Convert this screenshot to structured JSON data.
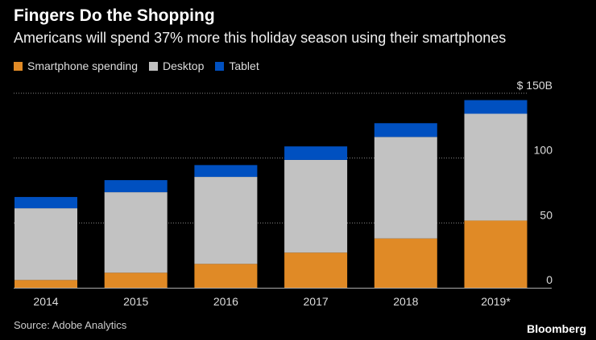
{
  "title": "Fingers Do the Shopping",
  "subtitle": "Americans will spend 37% more this holiday season using their smartphones",
  "source": "Source: Adobe Analytics",
  "brand": "Bloomberg",
  "chart_data": {
    "type": "bar",
    "stacked": true,
    "categories": [
      "2014",
      "2015",
      "2016",
      "2017",
      "2018",
      "2019*"
    ],
    "series": [
      {
        "name": "Smartphone spending",
        "color": "#e08a26",
        "values": [
          6.0,
          11.6,
          18.4,
          27.1,
          38.0,
          51.8
        ]
      },
      {
        "name": "Desktop",
        "color": "#c2c2c2",
        "values": [
          55.3,
          62.1,
          67.1,
          71.5,
          78.3,
          82.4
        ]
      },
      {
        "name": "Tablet",
        "color": "#0050c0",
        "values": [
          8.7,
          9.3,
          9.1,
          10.4,
          10.6,
          10.5
        ]
      }
    ],
    "yticks": [
      {
        "value": 0,
        "label": "0"
      },
      {
        "value": 50,
        "label": "50"
      },
      {
        "value": 100,
        "label": "100"
      },
      {
        "value": 150,
        "label": "$ 150B"
      }
    ],
    "ylim": [
      0,
      150
    ],
    "grid": true,
    "legend": "top-left",
    "yaxis_side": "right"
  }
}
